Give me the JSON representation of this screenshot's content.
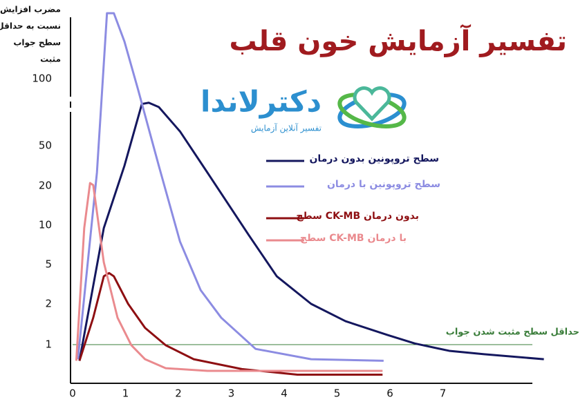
{
  "chart_data": {
    "type": "line",
    "title": "تفسیر آزمایش خون قلب",
    "ylabel_lines": [
      "مضرب افزایش",
      "نسبت به حداقل",
      "سطح جواب",
      "مثبت"
    ],
    "logo_name": "دکترلاندا",
    "logo_tagline": "تفسیر آنلاین آزمایش",
    "xlim": [
      0,
      9
    ],
    "xticks": [
      0,
      1,
      2,
      3,
      4,
      5,
      6,
      7
    ],
    "yticks": [
      1,
      2,
      5,
      10,
      20,
      50,
      100
    ],
    "threshold": {
      "value": 1,
      "label": "حداقل سطح مثبت شدن جواب",
      "color": "#3a7d3a"
    },
    "series": [
      {
        "name": "سطح تروپونین بدون درمان",
        "color": "#14175e",
        "x": [
          0.13,
          0.59,
          0.98,
          1.31,
          1.44,
          1.63,
          2.03,
          2.55,
          3.33,
          3.86,
          4.51,
          5.16,
          5.95,
          6.47,
          7.12,
          7.78,
          8.91
        ],
        "values": [
          0.76,
          9.5,
          31.6,
          77,
          78,
          74.6,
          58,
          27,
          8.4,
          3.8,
          2,
          1.49,
          1.18,
          1.02,
          0.9,
          0.85,
          0.78
        ]
      },
      {
        "name": "سطح تروپونین با درمان",
        "color": "#8c8ce2",
        "x": [
          0.1,
          0.46,
          0.65,
          0.78,
          0.98,
          1.24,
          1.63,
          2.03,
          2.42,
          2.81,
          3.46,
          4.51,
          5.88
        ],
        "values": [
          0.78,
          27,
          197,
          197,
          147,
          89,
          31.6,
          7.5,
          2.76,
          1.58,
          0.93,
          0.78,
          0.76
        ]
      },
      {
        "name": "سطح CK-MB بدون درمان",
        "color": "#8e0f12",
        "x": [
          0.13,
          0.39,
          0.59,
          0.69,
          0.78,
          1.05,
          1.37,
          1.76,
          2.29,
          3.2,
          4.25,
          5.86
        ],
        "values": [
          0.76,
          1.58,
          3.8,
          4.1,
          3.8,
          2,
          1.33,
          0.99,
          0.78,
          0.66,
          0.6,
          0.6
        ]
      },
      {
        "name": "سطح CK-MB با درمان",
        "color": "#ea8a8e",
        "x": [
          0.07,
          0.22,
          0.33,
          0.39,
          0.59,
          0.85,
          1.11,
          1.37,
          1.76,
          2.55,
          5.86
        ],
        "values": [
          0.76,
          9.5,
          21.3,
          20.3,
          5.2,
          1.58,
          0.99,
          0.78,
          0.67,
          0.64,
          0.64
        ]
      }
    ]
  }
}
